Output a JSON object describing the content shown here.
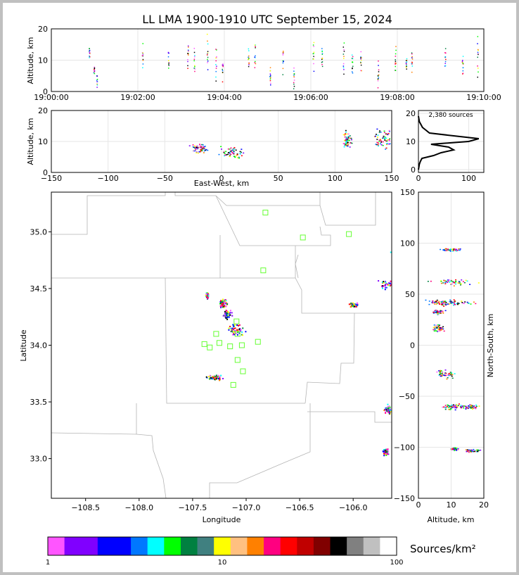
{
  "chart_data": {
    "title": "LL LMA 1900-1910 UTC September 15, 2024",
    "type": "scatter",
    "time_panel": {
      "ylabel": "Altitude, km",
      "ylim": [
        0,
        20
      ],
      "yticks": [
        "0",
        "10",
        "20"
      ],
      "xticks": [
        "19:00:00",
        "19:02:00",
        "19:04:00",
        "19:06:00",
        "19:08:00",
        "19:10:00"
      ],
      "bursts_min": [
        [
          0.87,
          12,
          1.5
        ],
        [
          0.98,
          7,
          1.0
        ],
        [
          1.05,
          3,
          1.5
        ],
        [
          2.1,
          11,
          2.0
        ],
        [
          2.7,
          10,
          1.5
        ],
        [
          3.15,
          11,
          2.0
        ],
        [
          3.3,
          11,
          2.0
        ],
        [
          3.6,
          12,
          2.5
        ],
        [
          3.8,
          9,
          3.0
        ],
        [
          3.95,
          7,
          2.0
        ],
        [
          4.55,
          10,
          2.0
        ],
        [
          4.7,
          12,
          2.0
        ],
        [
          5.05,
          6,
          2.0
        ],
        [
          5.35,
          11,
          2.0
        ],
        [
          5.6,
          5,
          2.0
        ],
        [
          6.05,
          11,
          2.0
        ],
        [
          6.25,
          11,
          2.0
        ],
        [
          6.75,
          11,
          3.0
        ],
        [
          6.95,
          9,
          2.0
        ],
        [
          7.15,
          10,
          2.0
        ],
        [
          7.55,
          6,
          2.0
        ],
        [
          7.95,
          10,
          2.0
        ],
        [
          8.2,
          10,
          2.0
        ],
        [
          8.33,
          9,
          2.0
        ],
        [
          9.1,
          10,
          2.0
        ],
        [
          9.5,
          10,
          2.0
        ],
        [
          9.85,
          11,
          3.0
        ]
      ]
    },
    "ew_panel": {
      "xlabel": "East-West, km",
      "ylabel": "Altitude, km",
      "xlim": [
        -150,
        150
      ],
      "ylim": [
        0,
        20
      ],
      "xticks": [
        "−150",
        "−100",
        "−50",
        "0",
        "50",
        "100",
        "150"
      ],
      "yticks": [
        "0",
        "10",
        "20"
      ],
      "clusters": [
        [
          -20,
          8,
          6,
          1.3
        ],
        [
          7,
          6.5,
          9,
          1.3
        ],
        [
          110,
          10.5,
          3,
          2.2
        ],
        [
          143,
          11,
          8,
          2.5
        ]
      ]
    },
    "histogram": {
      "annotation": "2,380 sources",
      "xticks": [
        "0",
        "100"
      ],
      "yticks": [
        "0",
        "10",
        "20"
      ],
      "counts_by_alt": [
        [
          0,
          0
        ],
        [
          1,
          1
        ],
        [
          2,
          2
        ],
        [
          3,
          4
        ],
        [
          4,
          7
        ],
        [
          5,
          30
        ],
        [
          6,
          45
        ],
        [
          7,
          70
        ],
        [
          8,
          60
        ],
        [
          9,
          25
        ],
        [
          10,
          100
        ],
        [
          11,
          120
        ],
        [
          12,
          70
        ],
        [
          13,
          22
        ],
        [
          14,
          15
        ],
        [
          15,
          8
        ],
        [
          16,
          5
        ],
        [
          17,
          2
        ],
        [
          18,
          1
        ],
        [
          19,
          0
        ]
      ]
    },
    "plan_panel": {
      "xlabel": "Longitude",
      "ylabel": "Latitude",
      "xlim": [
        -108.82,
        -105.64
      ],
      "ylim": [
        32.65,
        35.35
      ],
      "xticks": [
        "−108.5",
        "−108.0",
        "−107.5",
        "−107.0",
        "−106.5",
        "−106.0"
      ],
      "yticks": [
        "33.0",
        "33.5",
        "34.0",
        "34.5",
        "35.0"
      ],
      "clusters": [
        [
          -107.22,
          34.37,
          0.03,
          0.03
        ],
        [
          -107.18,
          34.28,
          0.03,
          0.03
        ],
        [
          -107.1,
          34.14,
          0.06,
          0.04
        ],
        [
          -107.3,
          33.72,
          0.06,
          0.02
        ],
        [
          -106.0,
          34.36,
          0.03,
          0.015
        ],
        [
          -105.68,
          34.54,
          0.06,
          0.03
        ],
        [
          -105.68,
          33.44,
          0.03,
          0.03
        ],
        [
          -105.7,
          33.06,
          0.02,
          0.02
        ],
        [
          -107.37,
          34.44,
          0.01,
          0.02
        ],
        [
          -105.64,
          34.82,
          0.01,
          0.02
        ]
      ],
      "stations": [
        [
          -106.82,
          35.17
        ],
        [
          -106.47,
          34.95
        ],
        [
          -106.04,
          34.98
        ],
        [
          -106.84,
          34.66
        ],
        [
          -107.09,
          34.21
        ],
        [
          -107.28,
          34.1
        ],
        [
          -107.39,
          34.01
        ],
        [
          -107.34,
          33.98
        ],
        [
          -107.25,
          34.02
        ],
        [
          -107.15,
          33.99
        ],
        [
          -107.04,
          34.0
        ],
        [
          -106.89,
          34.03
        ],
        [
          -107.08,
          34.1
        ],
        [
          -107.08,
          33.87
        ],
        [
          -107.03,
          33.77
        ],
        [
          -107.12,
          33.65
        ]
      ]
    },
    "ns_panel": {
      "xlabel": "Altitude, km",
      "ylabel": "North-South, km",
      "xlim": [
        0,
        20
      ],
      "ylim": [
        -150,
        150
      ],
      "xticks": [
        "0",
        "10",
        "20"
      ],
      "yticks": [
        "−150",
        "−100",
        "−50",
        "0",
        "50",
        "100",
        "150"
      ],
      "clusters": [
        [
          10,
          94,
          2.5,
          1.2
        ],
        [
          11,
          62,
          5,
          2.5
        ],
        [
          6,
          42,
          3,
          2
        ],
        [
          11,
          42,
          5,
          2
        ],
        [
          6,
          33,
          1.5,
          1.5
        ],
        [
          6,
          17,
          1.5,
          3
        ],
        [
          8,
          -28,
          2,
          3
        ],
        [
          10,
          -60,
          2,
          2
        ],
        [
          15,
          -60,
          3,
          2
        ],
        [
          11,
          -101,
          1,
          1
        ],
        [
          16,
          -103,
          2,
          1
        ]
      ]
    },
    "colorbar": {
      "label": "Sources/km²",
      "ticks": [
        "1",
        "10",
        "100"
      ],
      "colors": [
        "#ff55ff",
        "#8000ff",
        "#8000ff",
        "#0000ff",
        "#0000ff",
        "#0077ff",
        "#00ffff",
        "#00ff00",
        "#008040",
        "#408080",
        "#ffff00",
        "#ffc080",
        "#ff8000",
        "#ff0080",
        "#ff0000",
        "#c00000",
        "#800000",
        "#000000",
        "#808080",
        "#c0c0c0",
        "#ffffff"
      ]
    }
  }
}
